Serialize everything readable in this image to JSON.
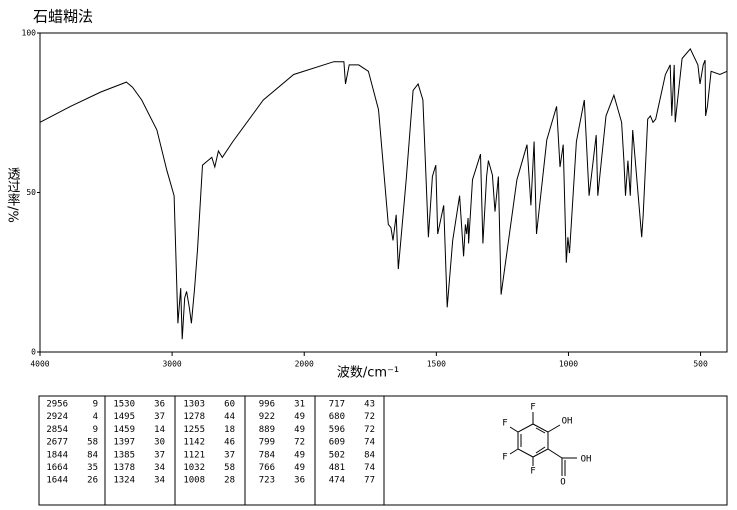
{
  "chart_data": {
    "type": "line",
    "title": "石蜡糊法",
    "x_label": "波数/cm⁻¹",
    "y_label": "透过率/%",
    "xlim": [
      4000,
      400
    ],
    "x_scale_break": 2000,
    "xticks": [
      4000,
      3000,
      2000,
      1500,
      1000,
      500
    ],
    "ylim": [
      0,
      100
    ],
    "yticks": [
      0,
      50,
      100
    ],
    "color": "#000000",
    "x": [
      4000,
      3770,
      3540,
      3346,
      3300,
      3230,
      3115,
      3040,
      2985,
      2956,
      2935,
      2924,
      2905,
      2890,
      2870,
      2854,
      2830,
      2808,
      2770,
      2700,
      2677,
      2650,
      2620,
      2540,
      2310,
      2080,
      1888,
      1850,
      1844,
      1830,
      1794,
      1757,
      1719,
      1682,
      1672,
      1664,
      1652,
      1644,
      1614,
      1588,
      1569,
      1551,
      1530,
      1515,
      1502,
      1495,
      1472,
      1459,
      1438,
      1412,
      1397,
      1390,
      1385,
      1380,
      1378,
      1363,
      1333,
      1324,
      1310,
      1303,
      1288,
      1278,
      1265,
      1255,
      1195,
      1157,
      1142,
      1130,
      1121,
      1082,
      1045,
      1032,
      1020,
      1008,
      1002,
      996,
      970,
      940,
      922,
      895,
      889,
      858,
      828,
      799,
      790,
      784,
      775,
      766,
      757,
      723,
      717,
      700,
      690,
      680,
      670,
      633,
      615,
      609,
      600,
      596,
      570,
      539,
      510,
      502,
      490,
      483,
      481,
      474,
      460,
      427,
      400
    ],
    "values": [
      72,
      77,
      81.5,
      84.6,
      83,
      79,
      69.6,
      57,
      49,
      9,
      20,
      4,
      17,
      19,
      14,
      9,
      20,
      32,
      58.6,
      61,
      58,
      63,
      61,
      66,
      79,
      87,
      91,
      91,
      84,
      90,
      90,
      88,
      76,
      40,
      39,
      35,
      43,
      26,
      54,
      82,
      84,
      79,
      36,
      55,
      58.6,
      37,
      46,
      14,
      35,
      49,
      30,
      40,
      37,
      42,
      34,
      54,
      62,
      34,
      55,
      60,
      55.5,
      44,
      55,
      18,
      54,
      65,
      46,
      66,
      37,
      66.5,
      77,
      58,
      65,
      28,
      36,
      31,
      66,
      79,
      49,
      68,
      49,
      74,
      80.5,
      72,
      60,
      49,
      60,
      49,
      69.6,
      36,
      43,
      73,
      74,
      72,
      73,
      87,
      90,
      74,
      90,
      72,
      92,
      95,
      90,
      84,
      90,
      91.5,
      74,
      77,
      88,
      87,
      88
    ]
  },
  "peak_table": {
    "columns": [
      [
        [
          2956,
          9
        ],
        [
          2924,
          4
        ],
        [
          2854,
          9
        ],
        [
          2677,
          58
        ],
        [
          1844,
          84
        ],
        [
          1664,
          35
        ],
        [
          1644,
          26
        ]
      ],
      [
        [
          1530,
          36
        ],
        [
          1495,
          37
        ],
        [
          1459,
          14
        ],
        [
          1397,
          30
        ],
        [
          1385,
          37
        ],
        [
          1378,
          34
        ],
        [
          1324,
          34
        ]
      ],
      [
        [
          1303,
          60
        ],
        [
          1278,
          44
        ],
        [
          1255,
          18
        ],
        [
          1142,
          46
        ],
        [
          1121,
          37
        ],
        [
          1032,
          58
        ],
        [
          1008,
          28
        ]
      ],
      [
        [
          996,
          31
        ],
        [
          922,
          49
        ],
        [
          889,
          49
        ],
        [
          799,
          72
        ],
        [
          784,
          49
        ],
        [
          766,
          49
        ],
        [
          723,
          36
        ]
      ],
      [
        [
          717,
          43
        ],
        [
          680,
          72
        ],
        [
          596,
          72
        ],
        [
          609,
          74
        ],
        [
          502,
          84
        ],
        [
          481,
          74
        ],
        [
          474,
          77
        ]
      ]
    ]
  },
  "structure": {
    "atoms": [
      "F",
      "OH",
      "F",
      "F",
      "F",
      "OH",
      "O"
    ]
  }
}
